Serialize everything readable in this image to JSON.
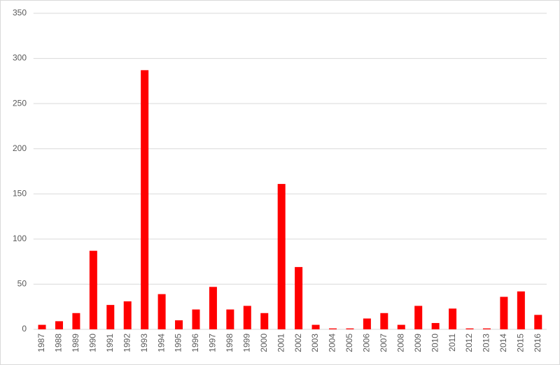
{
  "chart_data": {
    "type": "bar",
    "categories": [
      "1987",
      "1988",
      "1989",
      "1990",
      "1991",
      "1992",
      "1993",
      "1994",
      "1995",
      "1996",
      "1997",
      "1998",
      "1999",
      "2000",
      "2001",
      "2002",
      "2003",
      "2004",
      "2005",
      "2006",
      "2007",
      "2008",
      "2009",
      "2010",
      "2011",
      "2012",
      "2013",
      "2014",
      "2015",
      "2016"
    ],
    "values": [
      5,
      9,
      18,
      87,
      27,
      31,
      287,
      39,
      10,
      22,
      47,
      22,
      26,
      18,
      161,
      69,
      5,
      1,
      1,
      12,
      18,
      5,
      26,
      7,
      23,
      1,
      1,
      36,
      42,
      16
    ],
    "color": "#ff0000",
    "ylim": [
      0,
      350
    ],
    "yticks": [
      0,
      50,
      100,
      150,
      200,
      250,
      300,
      350
    ],
    "grid": true
  }
}
